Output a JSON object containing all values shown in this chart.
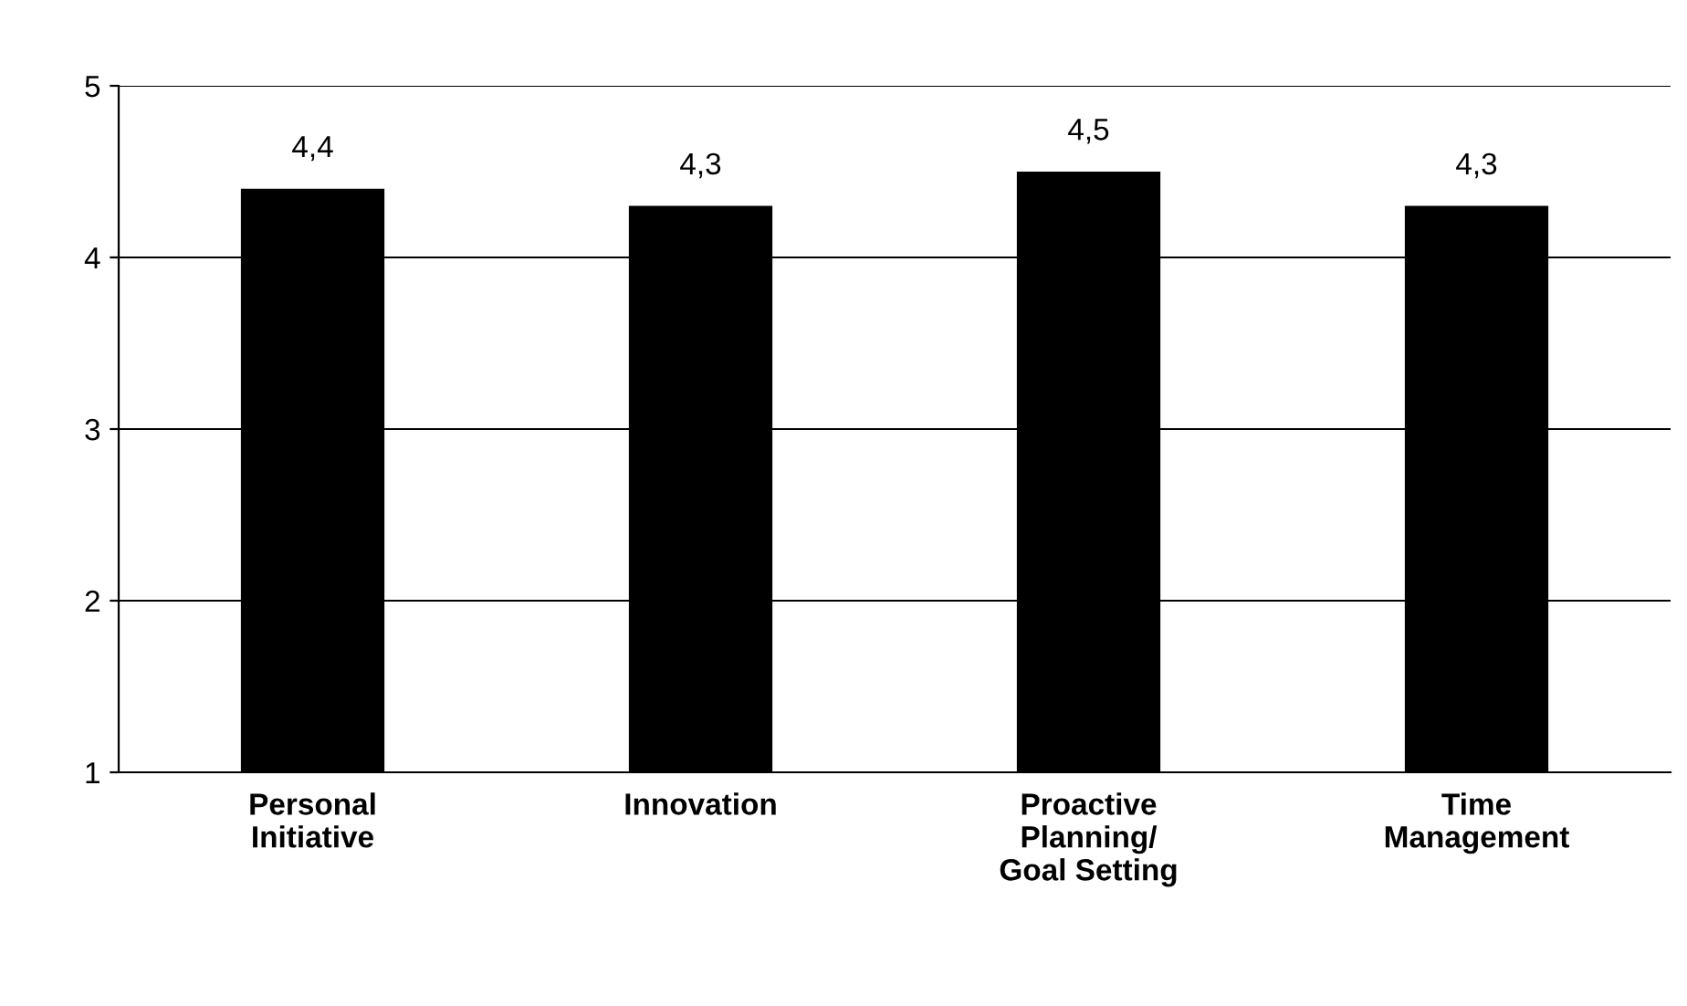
{
  "chart_data": {
    "type": "bar",
    "categories": [
      "Personal\nInitiative",
      "Innovation",
      "Proactive\nPlanning/\nGoal Setting",
      "Time\nManagement"
    ],
    "values": [
      4.4,
      4.3,
      4.5,
      4.3
    ],
    "value_labels": [
      "4,4",
      "4,3",
      "4,5",
      "4,3"
    ],
    "color": "#000000",
    "ylim": [
      1,
      5
    ],
    "yticks": [
      1,
      2,
      3,
      4,
      5
    ],
    "grid": "y"
  }
}
